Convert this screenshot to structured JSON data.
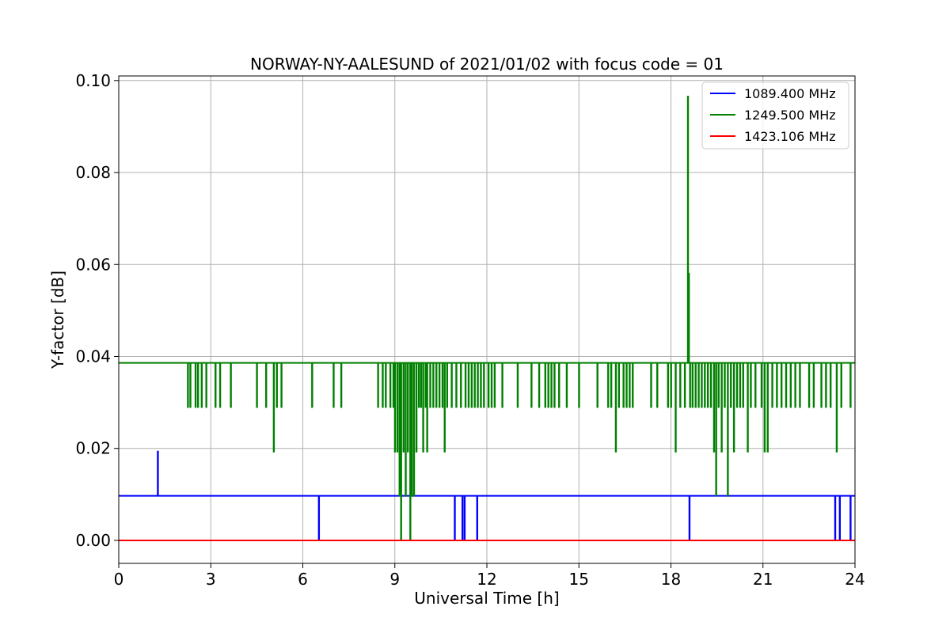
{
  "chart_data": {
    "type": "line",
    "title": "NORWAY-NY-AALESUND of 2021/01/02 with focus code = 01",
    "xlabel": "Universal Time [h]",
    "ylabel": "Y-factor [dB]",
    "xlim": [
      0,
      24
    ],
    "ylim": [
      -0.005,
      0.101
    ],
    "x_ticks": [
      0,
      3,
      6,
      9,
      12,
      15,
      18,
      21,
      24
    ],
    "x_tick_labels": [
      "0",
      "3",
      "6",
      "9",
      "12",
      "15",
      "18",
      "21",
      "24"
    ],
    "y_ticks": [
      0.0,
      0.02,
      0.04,
      0.06,
      0.08,
      0.1
    ],
    "y_tick_labels": [
      "0.00",
      "0.02",
      "0.04",
      "0.06",
      "0.08",
      "0.10"
    ],
    "grid": true,
    "legend_position": "top-right",
    "series": [
      {
        "name": "1089.400 MHz",
        "color": "#0000ff",
        "baseline": 0.0097,
        "spikes": [
          [
            1.27,
            0.0193
          ],
          [
            6.52,
            0.0
          ],
          [
            10.95,
            0.0
          ],
          [
            11.2,
            0.0
          ],
          [
            11.27,
            0.0
          ],
          [
            11.68,
            0.0
          ],
          [
            18.6,
            0.0
          ],
          [
            23.35,
            0.0
          ],
          [
            23.5,
            0.0
          ],
          [
            23.85,
            0.0
          ]
        ]
      },
      {
        "name": "1249.500 MHz",
        "color": "#008000",
        "baseline": 0.0386,
        "spikes": [
          [
            2.25,
            0.029
          ],
          [
            2.33,
            0.029
          ],
          [
            2.5,
            0.029
          ],
          [
            2.58,
            0.029
          ],
          [
            2.7,
            0.029
          ],
          [
            2.85,
            0.029
          ],
          [
            3.15,
            0.029
          ],
          [
            3.3,
            0.029
          ],
          [
            3.65,
            0.029
          ],
          [
            4.5,
            0.029
          ],
          [
            4.8,
            0.029
          ],
          [
            5.05,
            0.0193
          ],
          [
            5.15,
            0.029
          ],
          [
            5.3,
            0.029
          ],
          [
            6.3,
            0.029
          ],
          [
            7.0,
            0.029
          ],
          [
            7.25,
            0.029
          ],
          [
            8.45,
            0.029
          ],
          [
            8.6,
            0.029
          ],
          [
            8.7,
            0.029
          ],
          [
            8.85,
            0.029
          ],
          [
            8.95,
            0.029
          ],
          [
            9.0,
            0.0193
          ],
          [
            9.08,
            0.0193
          ],
          [
            9.15,
            0.0097
          ],
          [
            9.2,
            0.0
          ],
          [
            9.28,
            0.0193
          ],
          [
            9.35,
            0.0097
          ],
          [
            9.42,
            0.0193
          ],
          [
            9.5,
            0.0
          ],
          [
            9.55,
            0.0097
          ],
          [
            9.62,
            0.0097
          ],
          [
            9.7,
            0.0193
          ],
          [
            9.78,
            0.029
          ],
          [
            9.85,
            0.029
          ],
          [
            9.92,
            0.0193
          ],
          [
            10.0,
            0.029
          ],
          [
            10.05,
            0.0193
          ],
          [
            10.15,
            0.029
          ],
          [
            10.25,
            0.029
          ],
          [
            10.35,
            0.029
          ],
          [
            10.45,
            0.029
          ],
          [
            10.55,
            0.029
          ],
          [
            10.62,
            0.0193
          ],
          [
            10.7,
            0.029
          ],
          [
            10.85,
            0.029
          ],
          [
            11.0,
            0.029
          ],
          [
            11.15,
            0.029
          ],
          [
            11.3,
            0.029
          ],
          [
            11.4,
            0.029
          ],
          [
            11.5,
            0.029
          ],
          [
            11.6,
            0.029
          ],
          [
            11.7,
            0.029
          ],
          [
            11.8,
            0.029
          ],
          [
            11.9,
            0.029
          ],
          [
            12.05,
            0.029
          ],
          [
            12.15,
            0.029
          ],
          [
            12.25,
            0.029
          ],
          [
            12.5,
            0.029
          ],
          [
            13.0,
            0.029
          ],
          [
            13.45,
            0.029
          ],
          [
            13.7,
            0.029
          ],
          [
            13.9,
            0.029
          ],
          [
            14.0,
            0.029
          ],
          [
            14.1,
            0.029
          ],
          [
            14.2,
            0.029
          ],
          [
            14.35,
            0.029
          ],
          [
            14.6,
            0.029
          ],
          [
            15.0,
            0.029
          ],
          [
            15.6,
            0.029
          ],
          [
            15.95,
            0.029
          ],
          [
            16.05,
            0.029
          ],
          [
            16.2,
            0.0193
          ],
          [
            16.3,
            0.029
          ],
          [
            16.45,
            0.029
          ],
          [
            16.55,
            0.029
          ],
          [
            16.65,
            0.029
          ],
          [
            16.75,
            0.029
          ],
          [
            17.35,
            0.029
          ],
          [
            17.55,
            0.029
          ],
          [
            17.9,
            0.029
          ],
          [
            18.0,
            0.029
          ],
          [
            18.15,
            0.0193
          ],
          [
            18.3,
            0.029
          ],
          [
            18.45,
            0.029
          ],
          [
            18.55,
            0.0965
          ],
          [
            18.58,
            0.058
          ],
          [
            18.62,
            0.029
          ],
          [
            18.7,
            0.029
          ],
          [
            18.8,
            0.029
          ],
          [
            18.9,
            0.029
          ],
          [
            19.0,
            0.029
          ],
          [
            19.1,
            0.029
          ],
          [
            19.2,
            0.029
          ],
          [
            19.3,
            0.029
          ],
          [
            19.4,
            0.0193
          ],
          [
            19.47,
            0.0097
          ],
          [
            19.55,
            0.029
          ],
          [
            19.65,
            0.0193
          ],
          [
            19.75,
            0.029
          ],
          [
            19.85,
            0.0097
          ],
          [
            19.95,
            0.029
          ],
          [
            20.05,
            0.0193
          ],
          [
            20.15,
            0.029
          ],
          [
            20.25,
            0.029
          ],
          [
            20.35,
            0.029
          ],
          [
            20.5,
            0.0193
          ],
          [
            20.6,
            0.029
          ],
          [
            20.75,
            0.029
          ],
          [
            20.95,
            0.029
          ],
          [
            21.05,
            0.0193
          ],
          [
            21.15,
            0.0193
          ],
          [
            21.3,
            0.029
          ],
          [
            21.45,
            0.029
          ],
          [
            21.6,
            0.029
          ],
          [
            21.75,
            0.029
          ],
          [
            21.9,
            0.029
          ],
          [
            22.05,
            0.029
          ],
          [
            22.2,
            0.029
          ],
          [
            22.5,
            0.029
          ],
          [
            22.65,
            0.029
          ],
          [
            22.9,
            0.029
          ],
          [
            23.05,
            0.029
          ],
          [
            23.2,
            0.029
          ],
          [
            23.4,
            0.0193
          ],
          [
            23.55,
            0.029
          ],
          [
            23.85,
            0.029
          ]
        ]
      },
      {
        "name": "1423.106 MHz",
        "color": "#ff0000",
        "baseline": 0.0,
        "spikes": []
      }
    ]
  }
}
